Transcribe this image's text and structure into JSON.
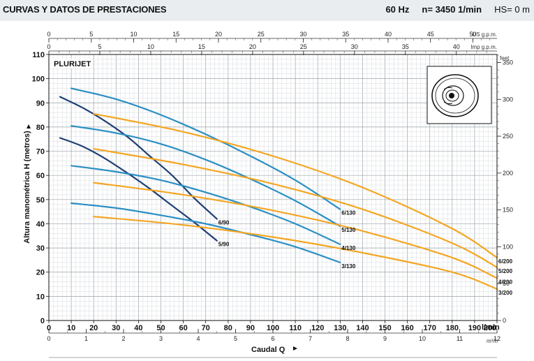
{
  "header": {
    "title": "CURVAS Y DATOS DE PRESTACIONES",
    "frequency": "60 Hz",
    "speed": "n= 3450  1/min",
    "hs": "HS= 0 m"
  },
  "chart_data": {
    "type": "line",
    "title": "PLURIJET",
    "xlabel": "Caudal Q",
    "ylabel": "Altura manométrica H (metros)",
    "xlim": [
      0,
      200
    ],
    "ylim": [
      0,
      110
    ],
    "x_ticks": [
      0,
      10,
      20,
      30,
      40,
      50,
      60,
      70,
      80,
      90,
      100,
      110,
      120,
      130,
      140,
      150,
      160,
      170,
      180,
      190,
      200
    ],
    "x_tick_labels": [
      "0",
      "10",
      "20",
      "30",
      "40",
      "50",
      "60",
      "70",
      "80",
      "90",
      "100",
      "110",
      "120",
      "130",
      "140",
      "150",
      "160",
      "170",
      "180",
      "190",
      "200"
    ],
    "x_unit": "l/min",
    "y_ticks": [
      0,
      10,
      20,
      30,
      40,
      50,
      60,
      70,
      80,
      90,
      100,
      110
    ],
    "y_tick_labels": [
      "0",
      "10",
      "20",
      "30",
      "40",
      "50",
      "60",
      "70",
      "80",
      "90",
      "100",
      "110"
    ],
    "secondary_axes": {
      "top_us": {
        "unit": "US g.p.m.",
        "ticks": [
          0,
          5,
          10,
          15,
          20,
          25,
          30,
          35,
          40,
          45,
          50
        ],
        "labels": [
          "0",
          "5",
          "10",
          "15",
          "20",
          "25",
          "30",
          "35",
          "40",
          "45",
          "50"
        ]
      },
      "top_imp": {
        "unit": "Imp g.p.m.",
        "ticks": [
          0,
          5,
          10,
          15,
          20,
          25,
          30,
          35,
          40
        ],
        "labels": [
          "0",
          "5",
          "10",
          "15",
          "20",
          "25",
          "30",
          "35",
          "40"
        ]
      },
      "bottom_m3h": {
        "unit": "m³/h",
        "ticks": [
          0,
          1,
          2,
          3,
          4,
          5,
          6,
          7,
          8,
          9,
          10,
          11,
          12
        ],
        "labels": [
          "0",
          "1",
          "2",
          "3",
          "4",
          "5",
          "6",
          "7",
          "8",
          "9",
          "10",
          "11",
          "12"
        ]
      },
      "right_feet": {
        "unit": "feet",
        "ticks": [
          0,
          50,
          100,
          150,
          200,
          250,
          300,
          350
        ],
        "labels": [
          "0",
          "50",
          "100",
          "150",
          "200",
          "250",
          "300",
          "350"
        ]
      }
    },
    "grid": true,
    "series": [
      {
        "name": "6/90",
        "color": "#1f3f73",
        "x": [
          5,
          15,
          25,
          35,
          45,
          55,
          65,
          75
        ],
        "y": [
          92.5,
          88,
          82.5,
          76,
          68,
          60,
          50.5,
          42
        ]
      },
      {
        "name": "5/90",
        "color": "#1f3f73",
        "x": [
          5,
          15,
          25,
          35,
          45,
          55,
          65,
          75
        ],
        "y": [
          75.5,
          72,
          67,
          61,
          54.5,
          47.5,
          40.5,
          33
        ]
      },
      {
        "name": "6/130",
        "color": "#2b8fc4",
        "x": [
          10,
          30,
          50,
          70,
          90,
          110,
          130
        ],
        "y": [
          96,
          91.5,
          85,
          77,
          68,
          58,
          46
        ]
      },
      {
        "name": "5/130",
        "color": "#2b8fc4",
        "x": [
          10,
          30,
          50,
          70,
          90,
          110,
          130
        ],
        "y": [
          80.5,
          77.5,
          73,
          66.5,
          58.5,
          49.5,
          39
        ]
      },
      {
        "name": "4/130",
        "color": "#2b8fc4",
        "x": [
          10,
          30,
          50,
          70,
          90,
          110,
          130
        ],
        "y": [
          64,
          61.5,
          58,
          53,
          47,
          40,
          31.5
        ]
      },
      {
        "name": "3/130",
        "color": "#2b8fc4",
        "x": [
          10,
          30,
          50,
          70,
          90,
          110,
          130
        ],
        "y": [
          48.5,
          46.5,
          43.5,
          40,
          35.5,
          30.5,
          24
        ]
      },
      {
        "name": "6/200",
        "color": "#f4a623",
        "x": [
          20,
          60,
          100,
          140,
          180,
          200
        ],
        "y": [
          85.5,
          78,
          68,
          55,
          38,
          26
        ]
      },
      {
        "name": "5/200",
        "color": "#f4a623",
        "x": [
          20,
          60,
          100,
          140,
          180,
          200
        ],
        "y": [
          71,
          64.5,
          56.5,
          46,
          32,
          22
        ]
      },
      {
        "name": "4/200",
        "color": "#f4a623",
        "x": [
          20,
          60,
          100,
          140,
          180,
          200
        ],
        "y": [
          57,
          52,
          45.5,
          37,
          26,
          17.5
        ]
      },
      {
        "name": "3/200",
        "color": "#f4a623",
        "x": [
          20,
          60,
          100,
          140,
          180,
          200
        ],
        "y": [
          43,
          39.5,
          34.5,
          28,
          20,
          13
        ]
      }
    ]
  }
}
